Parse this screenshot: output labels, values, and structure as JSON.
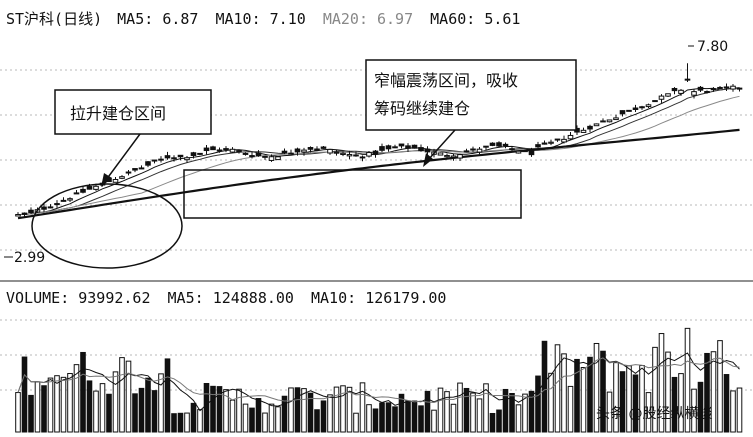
{
  "chart_data": [
    {
      "type": "candlestick",
      "title": "ST沪科(日线)",
      "legend": [
        {
          "label": "MA5",
          "value": "6.87",
          "color": "#111111"
        },
        {
          "label": "MA10",
          "value": "7.10",
          "color": "#111111"
        },
        {
          "label": "MA20",
          "value": "6.97",
          "color": "#888888"
        },
        {
          "label": "MA60",
          "value": "5.61",
          "color": "#111111"
        }
      ],
      "ylim": [
        1.2,
        8.6
      ],
      "annotations": {
        "high_label": "7.80",
        "low_label": "2.99",
        "callout_left": "拉升建仓区间",
        "callout_right_line1": "窄幅震荡区间，吸收",
        "callout_right_line2": "筹码继续建仓"
      },
      "candles_shown": 112,
      "high": 7.8,
      "low": 2.99
    },
    {
      "type": "bar",
      "title": "VOLUME",
      "legend": [
        {
          "label": "VOLUME",
          "value": "93992.62"
        },
        {
          "label": "MA5",
          "value": "124888.00"
        },
        {
          "label": "MA10",
          "value": "126179.00"
        }
      ],
      "ylim": [
        0,
        220000
      ],
      "bars_shown": 112
    }
  ],
  "watermark": "头条 @股经纵横谈"
}
